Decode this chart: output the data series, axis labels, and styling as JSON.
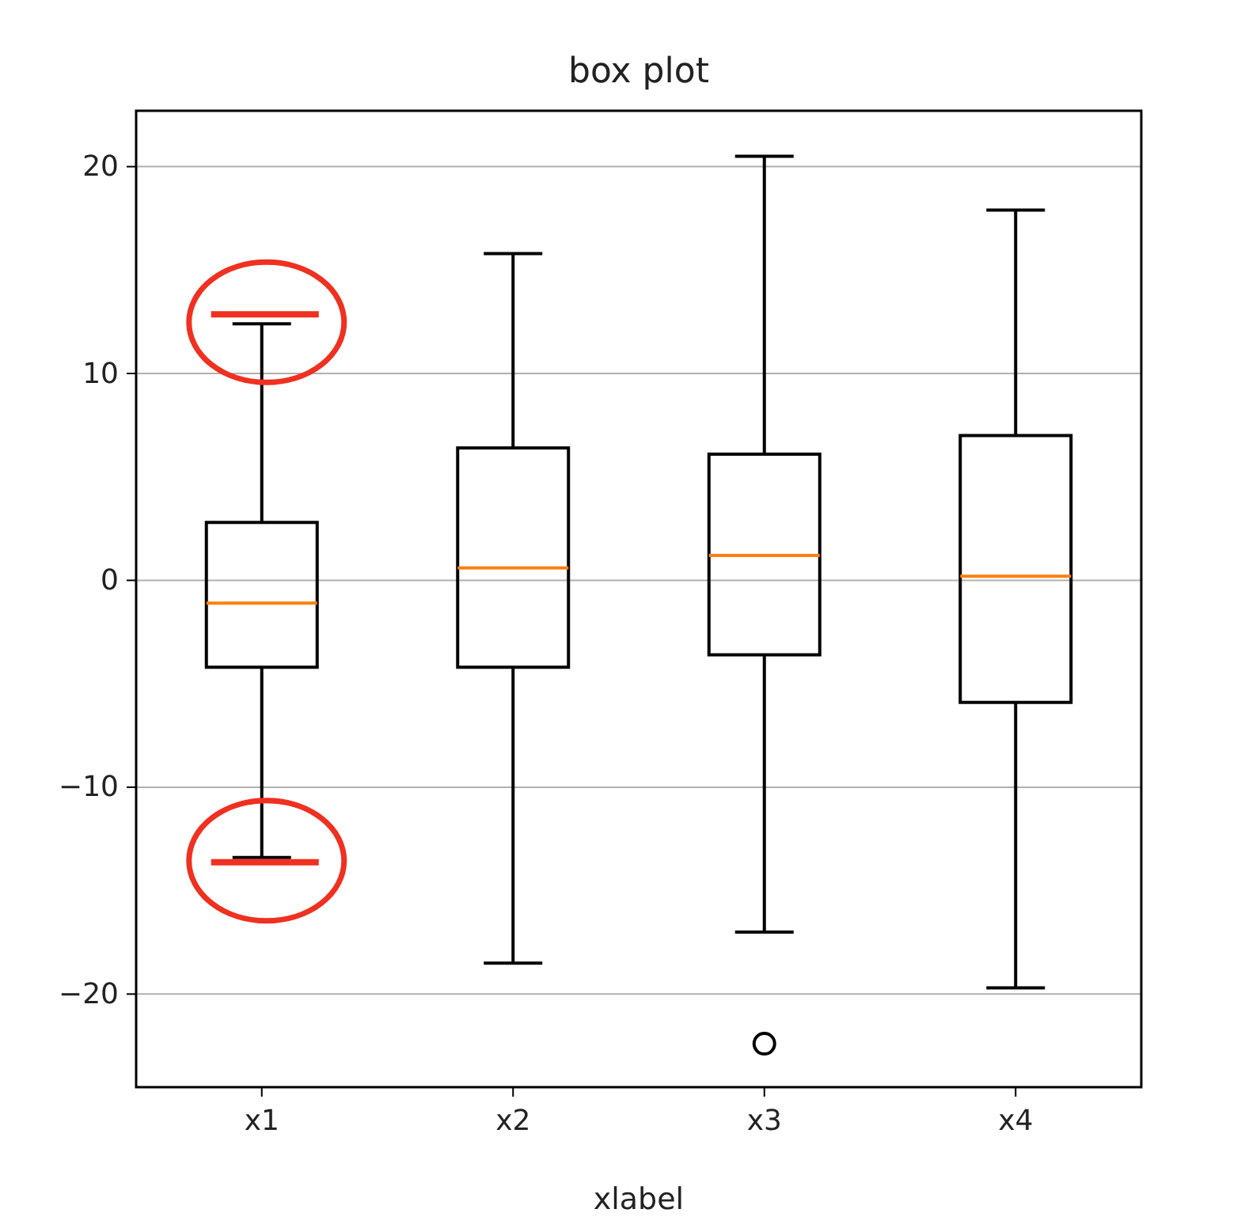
{
  "chart_data": {
    "type": "box",
    "title": "box plot",
    "xlabel": "xlabel",
    "categories": [
      "x1",
      "x2",
      "x3",
      "x4"
    ],
    "boxes": [
      {
        "low": -13.4,
        "q1": -4.2,
        "median": -1.1,
        "q3": 2.8,
        "high": 12.4
      },
      {
        "low": -18.5,
        "q1": -4.2,
        "median": 0.6,
        "q3": 6.4,
        "high": 15.8
      },
      {
        "low": -17.0,
        "q1": -3.6,
        "median": 1.2,
        "q3": 6.1,
        "high": 20.5,
        "outliers": [
          -22.4
        ]
      },
      {
        "low": -19.7,
        "q1": -5.9,
        "median": 0.2,
        "q3": 7.0,
        "high": 17.9
      }
    ],
    "color": "#000000",
    "ylim": [
      -24.5,
      22.7
    ],
    "yticks": [
      -20,
      -10,
      0,
      10,
      20
    ],
    "grid": "y"
  }
}
